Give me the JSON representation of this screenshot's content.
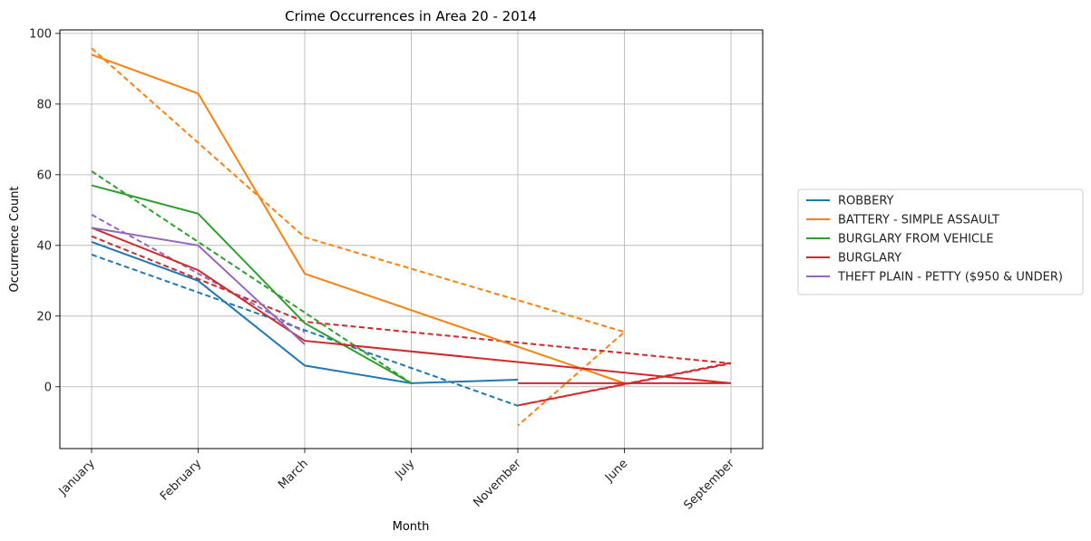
{
  "chart_data": {
    "type": "line",
    "title": "Crime Occurrences in Area 20 - 2014",
    "xlabel": "Month",
    "ylabel": "Occurrence Count",
    "categories": [
      "January",
      "February",
      "March",
      "July",
      "November",
      "June",
      "September"
    ],
    "ylim": [
      -17.5,
      101
    ],
    "yticks": [
      0,
      20,
      40,
      60,
      80,
      100
    ],
    "grid": true,
    "legend_position": "right-outside",
    "series": [
      {
        "name": "ROBBERY",
        "color": "#1f77b4",
        "x": [
          "January",
          "February",
          "March",
          "July",
          "November"
        ],
        "values": [
          41,
          30,
          6,
          1,
          2
        ],
        "trend": {
          "x": [
            "January",
            "November"
          ],
          "values": [
            37.4,
            -5.4
          ]
        }
      },
      {
        "name": "BATTERY - SIMPLE ASSAULT",
        "color": "#ff7f0e",
        "x": [
          "January",
          "February",
          "March",
          "June"
        ],
        "values": [
          94,
          83,
          32,
          1
        ],
        "trend": {
          "x": [
            "January",
            "March",
            "November",
            "June",
            "November"
          ],
          "values": [
            95.8,
            42.3,
            24.5,
            15.5,
            -11
          ]
        }
      },
      {
        "name": "BURGLARY FROM VEHICLE",
        "color": "#2ca02c",
        "x": [
          "January",
          "February",
          "March",
          "July"
        ],
        "values": [
          57,
          49,
          18,
          1
        ],
        "trend": {
          "x": [
            "January",
            "July"
          ],
          "values": [
            61,
            1
          ]
        }
      },
      {
        "name": "BURGLARY",
        "color": "#d62728",
        "x": [
          "January",
          "February",
          "March",
          "September",
          "November",
          "September"
        ],
        "values": [
          45,
          33,
          13,
          1,
          1,
          1
        ],
        "trend": {
          "x": [
            "January",
            "March",
            "September",
            "November",
            "September"
          ],
          "values": [
            42.6,
            18.4,
            6.6,
            -5.3,
            6.8
          ]
        }
      },
      {
        "name": "THEFT PLAIN - PETTY ($950 & UNDER)",
        "color": "#9467bd",
        "x": [
          "January",
          "February",
          "March"
        ],
        "values": [
          45,
          40,
          12
        ],
        "trend": {
          "x": [
            "January",
            "March"
          ],
          "values": [
            48.7,
            15.4
          ]
        }
      }
    ]
  }
}
